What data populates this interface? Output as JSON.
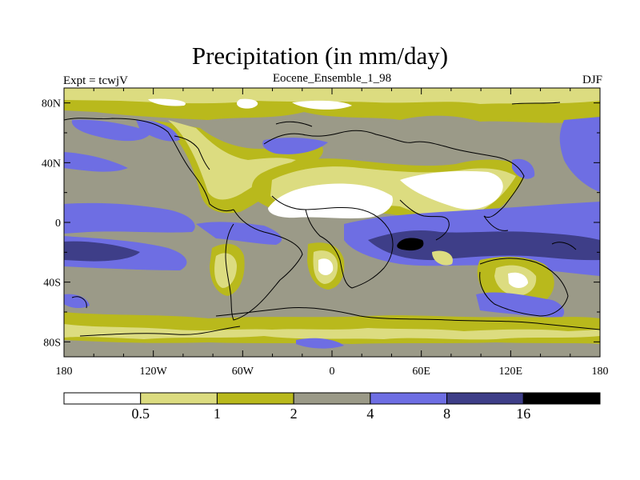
{
  "title": "Precipitation (in mm/day)",
  "left_label": "Expt = tcwjV",
  "center_label": "Eocene_Ensemble_1_98",
  "right_label": "DJF",
  "colors": {
    "c0": "#ffffff",
    "c1": "#dcdc80",
    "c2": "#b9b91c",
    "c3": "#9b9a88",
    "c4": "#6e6ee3",
    "c5": "#3e3e88",
    "c6": "#000000",
    "coast": "#000000"
  },
  "chart_data": {
    "type": "filled-contour-map",
    "title": "Precipitation (in mm/day)",
    "experiment": "Expt = tcwjV",
    "ensemble": "Eocene_Ensemble_1_98",
    "season": "DJF",
    "x_ticks": [
      "180",
      "120W",
      "60W",
      "0",
      "60E",
      "120E",
      "180"
    ],
    "x_tick_values": [
      -180,
      -120,
      -60,
      0,
      60,
      120,
      180
    ],
    "y_ticks": [
      "80N",
      "40N",
      "0",
      "40S",
      "80S"
    ],
    "y_tick_values": [
      80,
      40,
      0,
      -40,
      -80
    ],
    "xlim": [
      -180,
      180
    ],
    "ylim": [
      -90,
      90
    ],
    "colorbar": {
      "levels": [
        "0.5",
        "1",
        "2",
        "4",
        "8",
        "16"
      ],
      "level_values": [
        0.5,
        1,
        2,
        4,
        8,
        16
      ],
      "colors": [
        "#ffffff",
        "#dcdc80",
        "#b9b91c",
        "#9b9a88",
        "#6e6ee3",
        "#3e3e88",
        "#000000"
      ]
    }
  }
}
